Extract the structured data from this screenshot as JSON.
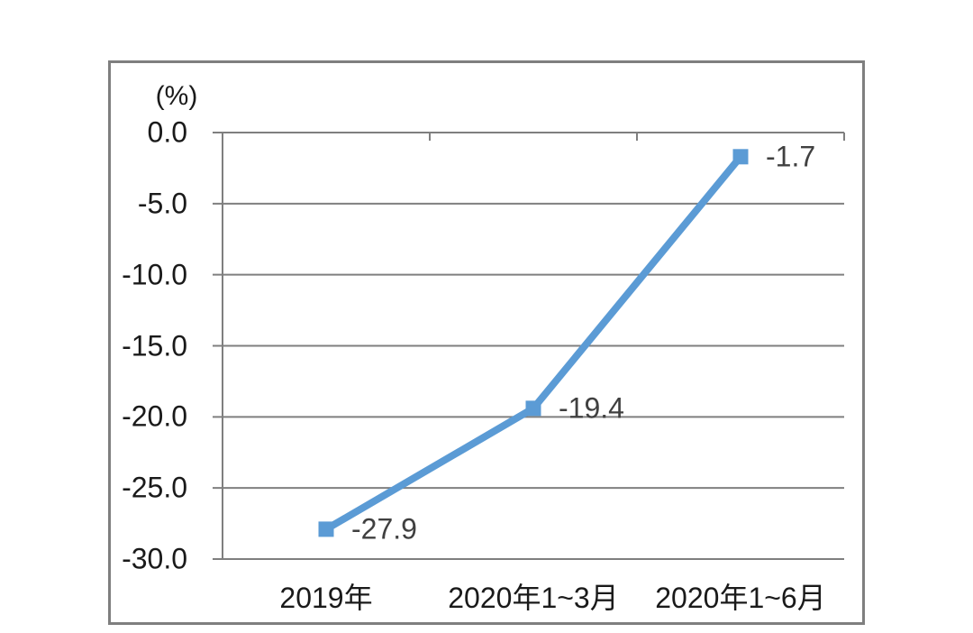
{
  "chart_data": {
    "type": "line",
    "title": "",
    "ylabel": "(%)",
    "xlabel": "",
    "categories": [
      "2019年",
      "2020年1~3月",
      "2020年1~6月"
    ],
    "values": [
      -27.9,
      -19.4,
      -1.7
    ],
    "data_labels": [
      "-27.9",
      "-19.4",
      "-1.7"
    ],
    "ylim": [
      -30,
      0
    ],
    "yticks": [
      0,
      -5,
      -10,
      -15,
      -20,
      -25,
      -30
    ],
    "ytick_labels": [
      "0.0",
      "-5.0",
      "-10.0",
      "-15.0",
      "-20.0",
      "-25.0",
      "-30.0"
    ],
    "grid": true,
    "legend": false,
    "marker": "square",
    "line_color": "#5b9bd5",
    "marker_color": "#5b9bd5",
    "grid_color": "#7f7f7f",
    "axis_color": "#7f7f7f",
    "frame_color": "#7f7f7f",
    "tick_text_color": "#1a1a1a",
    "data_label_color": "#404040"
  }
}
